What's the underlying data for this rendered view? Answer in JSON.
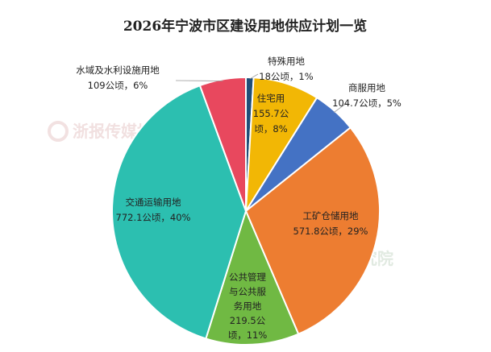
{
  "chart_data": {
    "type": "pie",
    "title": "2026年宁波市区建设用地供应计划一览",
    "slices": [
      {
        "name": "特殊用地",
        "value": 18,
        "value_label": "18公顷，1%",
        "percent": 1,
        "color": "#1f4e79"
      },
      {
        "name": "住宅用地",
        "value": 155.7,
        "value_label": "155.7公顷，8%",
        "percent": 8,
        "color": "#f2b705"
      },
      {
        "name": "商服用地",
        "value": 104.7,
        "value_label": "104.7公顷，5%",
        "percent": 5,
        "color": "#4472c4"
      },
      {
        "name": "工矿仓储用地",
        "value": 571.8,
        "value_label": "571.8公顷，29%",
        "percent": 29,
        "color": "#ed7d31"
      },
      {
        "name": "公共管理与公共服务用地",
        "value": 219.5,
        "value_label": "219.5公顷，11%",
        "percent": 11,
        "color": "#70b943"
      },
      {
        "name": "交通运输用地",
        "value": 772.1,
        "value_label": "772.1公顷，40%",
        "percent": 40,
        "color": "#2cbfb0"
      },
      {
        "name": "水域及水利设施用地",
        "value": 109,
        "value_label": "109公顷，6%",
        "percent": 6,
        "color": "#e8485e"
      }
    ],
    "watermark": "浙报传媒地产研究院",
    "legend": "none"
  }
}
